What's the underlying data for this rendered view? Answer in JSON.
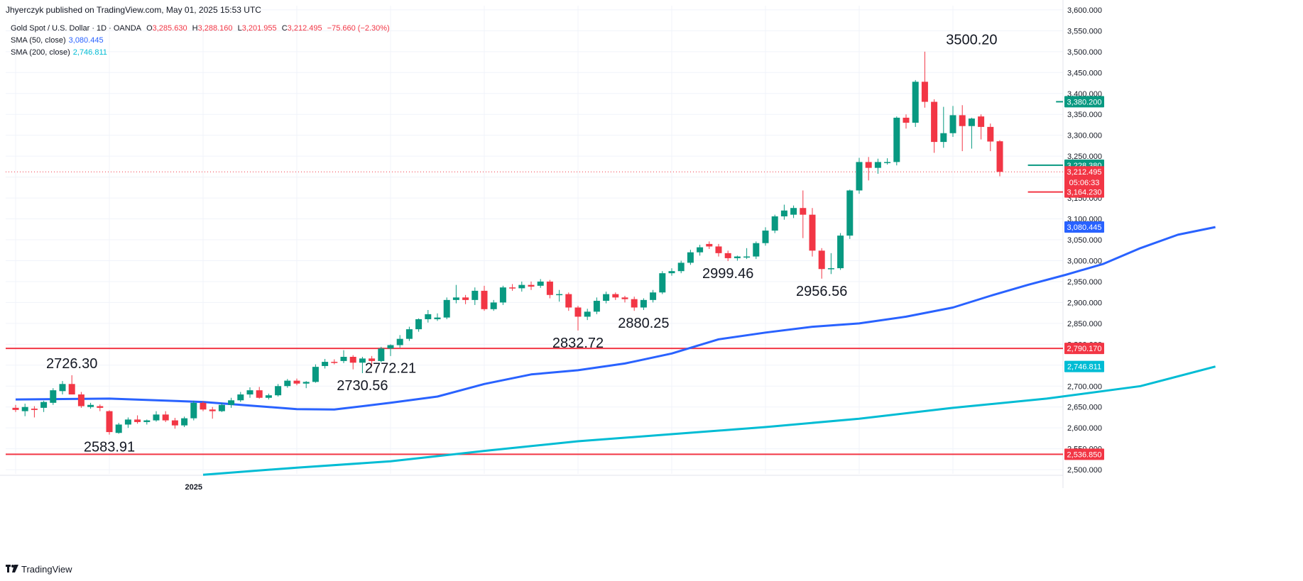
{
  "header": {
    "publisher": "Jhyerczyk published on TradingView.com, May 01, 2025 15:53 UTC"
  },
  "legend": {
    "symbol": "Gold Spot / U.S. Dollar · 1D · OANDA",
    "o_label": "O",
    "o_value": "3,285.630",
    "h_label": "H",
    "h_value": "3,288.160",
    "l_label": "L",
    "l_value": "3,201.955",
    "c_label": "C",
    "c_value": "3,212.495",
    "change": "−75.660 (−2.30%)",
    "sma50_label": "SMA (50, close)",
    "sma50_value": "3,080.445",
    "sma200_label": "SMA (200, close)",
    "sma200_value": "2,746.811"
  },
  "footer": {
    "brand": "TradingView"
  },
  "colors": {
    "up": "#089981",
    "down": "#f23645",
    "sma50": "#2962ff",
    "sma200": "#00bcd4",
    "hline_red": "#f23645",
    "hline_green": "#089981",
    "grid": "#f0f3fa",
    "text": "#131722"
  },
  "chart_data": {
    "type": "candlestick",
    "timeframe": "1D",
    "ylim": [
      2490,
      3610
    ],
    "y_ticks": [
      "3,600.000",
      "3,550.000",
      "3,500.000",
      "3,450.000",
      "3,400.000",
      "3,350.000",
      "3,300.000",
      "3,250.000",
      "3,200.000",
      "3,150.000",
      "3,100.000",
      "3,050.000",
      "3,000.000",
      "2,950.000",
      "2,900.000",
      "2,850.000",
      "2,800.000",
      "2,750.000",
      "2,700.000",
      "2,650.000",
      "2,600.000",
      "2,550.000",
      "2,500.000"
    ],
    "y_tick_values": [
      3600,
      3550,
      3500,
      3450,
      3400,
      3350,
      3300,
      3250,
      3200,
      3150,
      3100,
      3050,
      3000,
      2950,
      2900,
      2850,
      2800,
      2750,
      2700,
      2650,
      2600,
      2550,
      2500
    ],
    "x_tick_label": "2025",
    "x_tick_index": 19,
    "candles": [
      {
        "o": 2648,
        "h": 2655,
        "l": 2638,
        "c": 2643
      },
      {
        "o": 2640,
        "h": 2658,
        "l": 2628,
        "c": 2650
      },
      {
        "o": 2646,
        "h": 2652,
        "l": 2625,
        "c": 2643
      },
      {
        "o": 2648,
        "h": 2665,
        "l": 2638,
        "c": 2662
      },
      {
        "o": 2660,
        "h": 2695,
        "l": 2655,
        "c": 2690
      },
      {
        "o": 2688,
        "h": 2712,
        "l": 2680,
        "c": 2705
      },
      {
        "o": 2705,
        "h": 2726,
        "l": 2680,
        "c": 2680
      },
      {
        "o": 2680,
        "h": 2686,
        "l": 2648,
        "c": 2652
      },
      {
        "o": 2650,
        "h": 2660,
        "l": 2646,
        "c": 2655
      },
      {
        "o": 2652,
        "h": 2656,
        "l": 2640,
        "c": 2648
      },
      {
        "o": 2640,
        "h": 2642,
        "l": 2584,
        "c": 2590
      },
      {
        "o": 2588,
        "h": 2612,
        "l": 2586,
        "c": 2608
      },
      {
        "o": 2608,
        "h": 2625,
        "l": 2600,
        "c": 2620
      },
      {
        "o": 2620,
        "h": 2630,
        "l": 2610,
        "c": 2614
      },
      {
        "o": 2614,
        "h": 2620,
        "l": 2608,
        "c": 2618
      },
      {
        "o": 2618,
        "h": 2640,
        "l": 2615,
        "c": 2632
      },
      {
        "o": 2632,
        "h": 2640,
        "l": 2614,
        "c": 2618
      },
      {
        "o": 2618,
        "h": 2624,
        "l": 2598,
        "c": 2606
      },
      {
        "o": 2606,
        "h": 2627,
        "l": 2602,
        "c": 2623
      },
      {
        "o": 2623,
        "h": 2665,
        "l": 2618,
        "c": 2660
      },
      {
        "o": 2660,
        "h": 2664,
        "l": 2640,
        "c": 2644
      },
      {
        "o": 2644,
        "h": 2650,
        "l": 2622,
        "c": 2640
      },
      {
        "o": 2640,
        "h": 2660,
        "l": 2638,
        "c": 2655
      },
      {
        "o": 2655,
        "h": 2672,
        "l": 2648,
        "c": 2666
      },
      {
        "o": 2666,
        "h": 2686,
        "l": 2662,
        "c": 2680
      },
      {
        "o": 2680,
        "h": 2697,
        "l": 2672,
        "c": 2690
      },
      {
        "o": 2690,
        "h": 2698,
        "l": 2670,
        "c": 2672
      },
      {
        "o": 2672,
        "h": 2682,
        "l": 2668,
        "c": 2678
      },
      {
        "o": 2678,
        "h": 2705,
        "l": 2675,
        "c": 2700
      },
      {
        "o": 2700,
        "h": 2717,
        "l": 2696,
        "c": 2713
      },
      {
        "o": 2713,
        "h": 2718,
        "l": 2702,
        "c": 2706
      },
      {
        "o": 2706,
        "h": 2712,
        "l": 2695,
        "c": 2710
      },
      {
        "o": 2710,
        "h": 2752,
        "l": 2708,
        "c": 2746
      },
      {
        "o": 2748,
        "h": 2765,
        "l": 2742,
        "c": 2758
      },
      {
        "o": 2758,
        "h": 2764,
        "l": 2752,
        "c": 2756
      },
      {
        "o": 2760,
        "h": 2786,
        "l": 2755,
        "c": 2770
      },
      {
        "o": 2770,
        "h": 2774,
        "l": 2740,
        "c": 2756
      },
      {
        "o": 2756,
        "h": 2770,
        "l": 2731,
        "c": 2766
      },
      {
        "o": 2766,
        "h": 2772,
        "l": 2748,
        "c": 2760
      },
      {
        "o": 2760,
        "h": 2794,
        "l": 2757,
        "c": 2790
      },
      {
        "o": 2790,
        "h": 2800,
        "l": 2772,
        "c": 2798
      },
      {
        "o": 2798,
        "h": 2822,
        "l": 2792,
        "c": 2813
      },
      {
        "o": 2813,
        "h": 2842,
        "l": 2808,
        "c": 2836
      },
      {
        "o": 2836,
        "h": 2862,
        "l": 2830,
        "c": 2860
      },
      {
        "o": 2860,
        "h": 2882,
        "l": 2852,
        "c": 2872
      },
      {
        "o": 2860,
        "h": 2874,
        "l": 2856,
        "c": 2864
      },
      {
        "o": 2864,
        "h": 2912,
        "l": 2860,
        "c": 2906
      },
      {
        "o": 2906,
        "h": 2942,
        "l": 2898,
        "c": 2912
      },
      {
        "o": 2912,
        "h": 2918,
        "l": 2896,
        "c": 2906
      },
      {
        "o": 2906,
        "h": 2936,
        "l": 2894,
        "c": 2928
      },
      {
        "o": 2928,
        "h": 2940,
        "l": 2880,
        "c": 2884
      },
      {
        "o": 2884,
        "h": 2906,
        "l": 2880,
        "c": 2900
      },
      {
        "o": 2900,
        "h": 2940,
        "l": 2894,
        "c": 2936
      },
      {
        "o": 2936,
        "h": 2944,
        "l": 2928,
        "c": 2934
      },
      {
        "o": 2934,
        "h": 2950,
        "l": 2926,
        "c": 2942
      },
      {
        "o": 2942,
        "h": 2950,
        "l": 2930,
        "c": 2938
      },
      {
        "o": 2940,
        "h": 2956,
        "l": 2935,
        "c": 2950
      },
      {
        "o": 2950,
        "h": 2954,
        "l": 2910,
        "c": 2918
      },
      {
        "o": 2918,
        "h": 2930,
        "l": 2902,
        "c": 2920
      },
      {
        "o": 2920,
        "h": 2924,
        "l": 2880,
        "c": 2888
      },
      {
        "o": 2888,
        "h": 2892,
        "l": 2833,
        "c": 2866
      },
      {
        "o": 2866,
        "h": 2885,
        "l": 2858,
        "c": 2878
      },
      {
        "o": 2878,
        "h": 2912,
        "l": 2872,
        "c": 2904
      },
      {
        "o": 2904,
        "h": 2926,
        "l": 2898,
        "c": 2920
      },
      {
        "o": 2920,
        "h": 2924,
        "l": 2906,
        "c": 2912
      },
      {
        "o": 2912,
        "h": 2916,
        "l": 2900,
        "c": 2908
      },
      {
        "o": 2908,
        "h": 2914,
        "l": 2880,
        "c": 2888
      },
      {
        "o": 2888,
        "h": 2910,
        "l": 2882,
        "c": 2906
      },
      {
        "o": 2906,
        "h": 2930,
        "l": 2900,
        "c": 2924
      },
      {
        "o": 2924,
        "h": 2975,
        "l": 2920,
        "c": 2970
      },
      {
        "o": 2970,
        "h": 2982,
        "l": 2964,
        "c": 2975
      },
      {
        "o": 2975,
        "h": 3000,
        "l": 2970,
        "c": 2995
      },
      {
        "o": 2995,
        "h": 3026,
        "l": 2990,
        "c": 3020
      },
      {
        "o": 3020,
        "h": 3038,
        "l": 3012,
        "c": 3032
      },
      {
        "o": 3040,
        "h": 3046,
        "l": 3028,
        "c": 3034
      },
      {
        "o": 3034,
        "h": 3040,
        "l": 3010,
        "c": 3018
      },
      {
        "o": 3018,
        "h": 3024,
        "l": 2999,
        "c": 3006
      },
      {
        "o": 3006,
        "h": 3012,
        "l": 3000,
        "c": 3010
      },
      {
        "o": 3010,
        "h": 3030,
        "l": 3004,
        "c": 3010
      },
      {
        "o": 3010,
        "h": 3046,
        "l": 3004,
        "c": 3042
      },
      {
        "o": 3042,
        "h": 3080,
        "l": 3036,
        "c": 3072
      },
      {
        "o": 3072,
        "h": 3110,
        "l": 3066,
        "c": 3106
      },
      {
        "o": 3106,
        "h": 3134,
        "l": 3098,
        "c": 3120
      },
      {
        "o": 3110,
        "h": 3132,
        "l": 3102,
        "c": 3126
      },
      {
        "o": 3126,
        "h": 3168,
        "l": 3054,
        "c": 3110
      },
      {
        "o": 3110,
        "h": 3126,
        "l": 3010,
        "c": 3024
      },
      {
        "o": 3024,
        "h": 3030,
        "l": 2957,
        "c": 2980
      },
      {
        "o": 2980,
        "h": 3018,
        "l": 2968,
        "c": 2982
      },
      {
        "o": 2982,
        "h": 3066,
        "l": 2978,
        "c": 3060
      },
      {
        "o": 3060,
        "h": 3170,
        "l": 3052,
        "c": 3168
      },
      {
        "o": 3168,
        "h": 3246,
        "l": 3160,
        "c": 3236
      },
      {
        "o": 3236,
        "h": 3248,
        "l": 3192,
        "c": 3222
      },
      {
        "o": 3222,
        "h": 3244,
        "l": 3208,
        "c": 3236
      },
      {
        "o": 3236,
        "h": 3245,
        "l": 3230,
        "c": 3236
      },
      {
        "o": 3236,
        "h": 3345,
        "l": 3228,
        "c": 3342
      },
      {
        "o": 3342,
        "h": 3350,
        "l": 3316,
        "c": 3330
      },
      {
        "o": 3330,
        "h": 3432,
        "l": 3320,
        "c": 3428
      },
      {
        "o": 3428,
        "h": 3500,
        "l": 3366,
        "c": 3380
      },
      {
        "o": 3380,
        "h": 3386,
        "l": 3258,
        "c": 3284
      },
      {
        "o": 3284,
        "h": 3368,
        "l": 3270,
        "c": 3305
      },
      {
        "o": 3305,
        "h": 3370,
        "l": 3296,
        "c": 3348
      },
      {
        "o": 3348,
        "h": 3372,
        "l": 3262,
        "c": 3322
      },
      {
        "o": 3322,
        "h": 3342,
        "l": 3268,
        "c": 3340
      },
      {
        "o": 3345,
        "h": 3350,
        "l": 3290,
        "c": 3320
      },
      {
        "o": 3320,
        "h": 3328,
        "l": 3262,
        "c": 3285
      },
      {
        "o": 3285.63,
        "h": 3288.16,
        "l": 3201.955,
        "c": 3212.495
      }
    ],
    "sma50": {
      "name": "SMA (50, close)",
      "points": [
        [
          0,
          2668
        ],
        [
          10,
          2670
        ],
        [
          20,
          2662
        ],
        [
          30,
          2645
        ],
        [
          34,
          2644
        ],
        [
          40,
          2660
        ],
        [
          45,
          2675
        ],
        [
          50,
          2705
        ],
        [
          55,
          2728
        ],
        [
          60,
          2738
        ],
        [
          65,
          2754
        ],
        [
          70,
          2778
        ],
        [
          75,
          2812
        ],
        [
          80,
          2828
        ],
        [
          85,
          2842
        ],
        [
          90,
          2850
        ],
        [
          95,
          2866
        ],
        [
          100,
          2888
        ],
        [
          104,
          2916
        ],
        [
          108,
          2942
        ],
        [
          112,
          2966
        ],
        [
          116,
          2992
        ],
        [
          120,
          3030
        ],
        [
          124,
          3062
        ],
        [
          128,
          3080.445
        ]
      ]
    },
    "sma200": {
      "name": "SMA (200, close)",
      "points": [
        [
          20,
          2488
        ],
        [
          30,
          2505
        ],
        [
          40,
          2520
        ],
        [
          50,
          2545
        ],
        [
          60,
          2568
        ],
        [
          70,
          2585
        ],
        [
          80,
          2602
        ],
        [
          90,
          2622
        ],
        [
          100,
          2648
        ],
        [
          110,
          2670
        ],
        [
          120,
          2700
        ],
        [
          128,
          2746.811
        ]
      ]
    },
    "price_levels": [
      {
        "value": 3380.2,
        "label": "3,380.200",
        "color": "#089981",
        "style": "segment",
        "from_index": 111
      },
      {
        "value": 3228.38,
        "label": "3,228.380",
        "color": "#089981",
        "style": "segment",
        "from_index": 108
      },
      {
        "value": 3164.23,
        "label": "3,164.230",
        "color": "#f23645",
        "style": "segment",
        "from_index": 108
      },
      {
        "value": 2790.17,
        "label": "2,790.170",
        "color": "#f23645",
        "style": "full"
      },
      {
        "value": 2536.85,
        "label": "2,536.850",
        "color": "#f23645",
        "style": "full"
      }
    ],
    "last_price": {
      "value": 3212.495,
      "label": "3,212.495",
      "countdown": "05:06:33",
      "color": "#f23645"
    },
    "sma_badges": [
      {
        "value": 3080.445,
        "label": "3,080.445",
        "color": "#2962ff"
      },
      {
        "value": 2746.811,
        "label": "2,746.811",
        "color": "#00bcd4"
      }
    ],
    "annotations": [
      {
        "text": "2726.30",
        "index": 6,
        "value": 2726.3
      },
      {
        "text": "2583.91",
        "index": 10,
        "value": 2583.91
      },
      {
        "text": "2730.56",
        "index": 37,
        "value": 2730.56
      },
      {
        "text": "2772.21",
        "index": 40,
        "value": 2772.21
      },
      {
        "text": "2832.72",
        "index": 60,
        "value": 2832.72
      },
      {
        "text": "2880.25",
        "index": 67,
        "value": 2880.25
      },
      {
        "text": "2999.46",
        "index": 76,
        "value": 2999.46
      },
      {
        "text": "2956.56",
        "index": 86,
        "value": 2956.56
      },
      {
        "text": "3500.20",
        "index": 102,
        "value": 3500.2
      }
    ]
  }
}
